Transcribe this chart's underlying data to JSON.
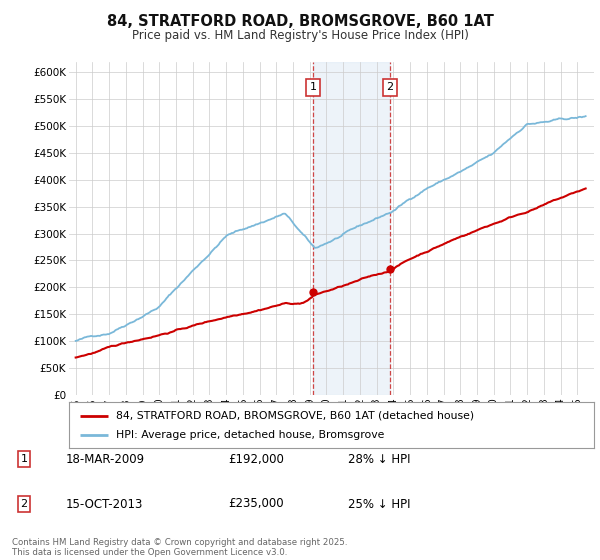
{
  "title": "84, STRATFORD ROAD, BROMSGROVE, B60 1AT",
  "subtitle": "Price paid vs. HM Land Registry's House Price Index (HPI)",
  "ylim": [
    0,
    620000
  ],
  "yticks": [
    0,
    50000,
    100000,
    150000,
    200000,
    250000,
    300000,
    350000,
    400000,
    450000,
    500000,
    550000,
    600000
  ],
  "ytick_labels": [
    "£0",
    "£50K",
    "£100K",
    "£150K",
    "£200K",
    "£250K",
    "£300K",
    "£350K",
    "£400K",
    "£450K",
    "£500K",
    "£550K",
    "£600K"
  ],
  "hpi_color": "#7ab8d9",
  "sale_color": "#cc0000",
  "marker1_date": 2009.21,
  "marker2_date": 2013.79,
  "sale1_price": 192000,
  "sale2_price": 235000,
  "legend_sale": "84, STRATFORD ROAD, BROMSGROVE, B60 1AT (detached house)",
  "legend_hpi": "HPI: Average price, detached house, Bromsgrove",
  "table_row1": [
    "1",
    "18-MAR-2009",
    "£192,000",
    "28% ↓ HPI"
  ],
  "table_row2": [
    "2",
    "15-OCT-2013",
    "£235,000",
    "25% ↓ HPI"
  ],
  "footnote": "Contains HM Land Registry data © Crown copyright and database right 2025.\nThis data is licensed under the Open Government Licence v3.0.",
  "bg_color": "#ffffff",
  "grid_color": "#cccccc",
  "highlight_color": "#dce9f5",
  "xstart": 1995,
  "xend": 2025
}
